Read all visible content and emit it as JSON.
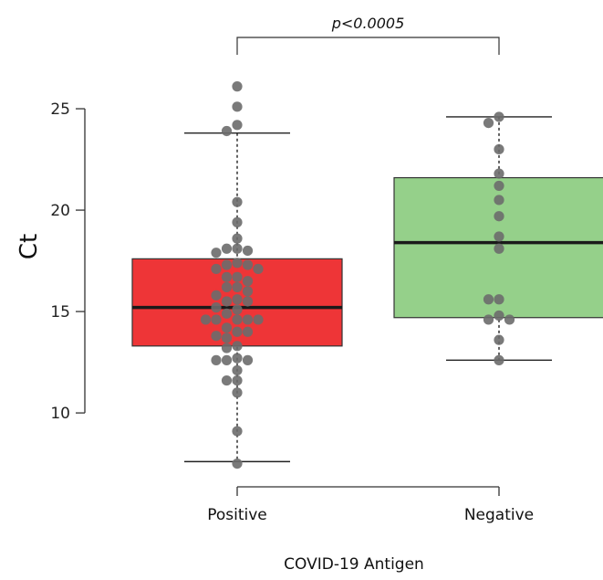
{
  "chart_data": {
    "type": "box",
    "title": "",
    "xlabel": "COVID-19 Antigen",
    "ylabel": "Ct",
    "ylim": [
      5.5,
      28.2
    ],
    "yticks": [
      10,
      15,
      20,
      25
    ],
    "grid": false,
    "legend": "none",
    "categories": [
      "Positive",
      "Negative"
    ],
    "box_colors": [
      "#ee3537",
      "#95d08a"
    ],
    "point_color": "#6b6b6b",
    "annotation": {
      "text": "p<0.0005",
      "between": [
        "Positive",
        "Negative"
      ]
    },
    "boxes": [
      {
        "category": "Positive",
        "whisker_low": 7.6,
        "q1": 13.3,
        "median": 15.2,
        "q3": 17.6,
        "whisker_high": 23.8,
        "points": [
          26.1,
          25.1,
          24.2,
          23.9,
          20.4,
          19.4,
          18.6,
          18.1,
          18.1,
          18.0,
          17.9,
          17.4,
          17.3,
          17.3,
          17.1,
          17.1,
          16.7,
          16.7,
          16.5,
          16.2,
          16.2,
          16.0,
          15.8,
          15.6,
          15.5,
          15.5,
          15.2,
          15.1,
          14.9,
          14.6,
          14.6,
          14.6,
          14.6,
          14.6,
          14.2,
          14.0,
          14.0,
          13.8,
          13.7,
          13.3,
          13.2,
          12.7,
          12.6,
          12.6,
          12.6,
          12.1,
          11.6,
          11.6,
          11.0,
          9.1,
          7.5
        ]
      },
      {
        "category": "Negative",
        "whisker_low": 12.6,
        "q1": 14.7,
        "median": 18.4,
        "q3": 21.6,
        "whisker_high": 24.6,
        "points": [
          24.6,
          24.3,
          23.0,
          21.8,
          21.2,
          20.5,
          19.7,
          18.7,
          18.1,
          15.6,
          15.6,
          14.8,
          14.6,
          14.6,
          13.6,
          12.6
        ]
      }
    ]
  }
}
